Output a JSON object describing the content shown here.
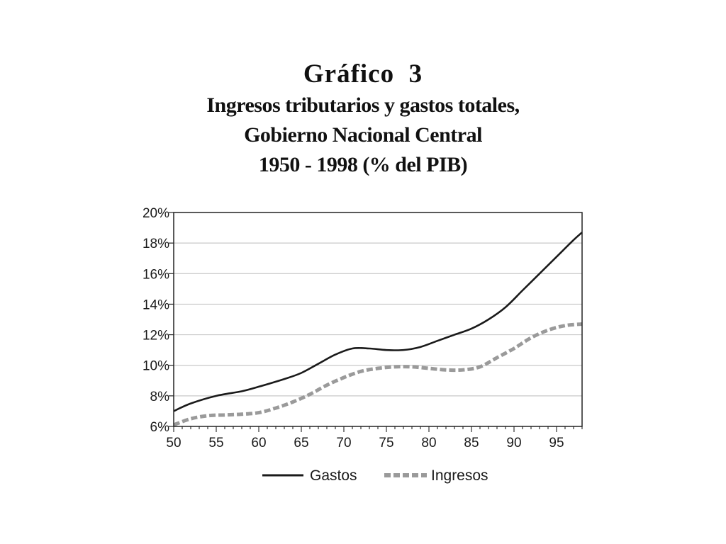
{
  "header": {
    "title": "Gráfico  3",
    "subtitle_lines": [
      "Ingresos tributarios y gastos totales,",
      "Gobierno Nacional Central",
      "1950 - 1998 (% del PIB)"
    ]
  },
  "colors": {
    "gastos": "#1a1a1a",
    "ingresos": "#9a9a9a",
    "grid": "#c8c8c8",
    "frame": "#222222"
  },
  "chart_data": {
    "type": "line",
    "title": "",
    "xlabel": "",
    "ylabel": "",
    "xlim": [
      50,
      98
    ],
    "ylim": [
      6,
      20
    ],
    "x_ticks": [
      50,
      55,
      60,
      65,
      70,
      75,
      80,
      85,
      90,
      95
    ],
    "x_tick_labels": [
      "50",
      "55",
      "60",
      "65",
      "70",
      "75",
      "80",
      "85",
      "90",
      "95"
    ],
    "y_ticks": [
      6,
      8,
      10,
      12,
      14,
      16,
      18,
      20
    ],
    "y_tick_labels": [
      "6%",
      "8%",
      "10%",
      "12%",
      "14%",
      "16%",
      "18%",
      "20%"
    ],
    "grid": "horizontal",
    "legend_position": "bottom",
    "series": [
      {
        "name": "Gastos",
        "style": "solid",
        "points": [
          [
            50,
            7.0
          ],
          [
            52,
            7.5
          ],
          [
            55,
            8.0
          ],
          [
            58,
            8.3
          ],
          [
            60,
            8.6
          ],
          [
            63,
            9.1
          ],
          [
            65,
            9.5
          ],
          [
            67,
            10.1
          ],
          [
            69,
            10.7
          ],
          [
            71,
            11.1
          ],
          [
            73,
            11.1
          ],
          [
            75,
            11.0
          ],
          [
            77,
            11.0
          ],
          [
            79,
            11.2
          ],
          [
            81,
            11.6
          ],
          [
            83,
            12.0
          ],
          [
            85,
            12.4
          ],
          [
            87,
            13.0
          ],
          [
            89,
            13.8
          ],
          [
            91,
            14.9
          ],
          [
            93,
            16.0
          ],
          [
            95,
            17.1
          ],
          [
            97,
            18.2
          ],
          [
            98,
            18.7
          ]
        ]
      },
      {
        "name": "Ingresos",
        "style": "dashed",
        "points": [
          [
            50,
            6.1
          ],
          [
            52,
            6.5
          ],
          [
            54,
            6.7
          ],
          [
            56,
            6.75
          ],
          [
            58,
            6.8
          ],
          [
            60,
            6.9
          ],
          [
            62,
            7.2
          ],
          [
            64,
            7.6
          ],
          [
            66,
            8.1
          ],
          [
            68,
            8.7
          ],
          [
            70,
            9.2
          ],
          [
            72,
            9.6
          ],
          [
            74,
            9.8
          ],
          [
            76,
            9.9
          ],
          [
            78,
            9.9
          ],
          [
            80,
            9.8
          ],
          [
            82,
            9.7
          ],
          [
            84,
            9.7
          ],
          [
            86,
            9.9
          ],
          [
            88,
            10.5
          ],
          [
            90,
            11.1
          ],
          [
            92,
            11.8
          ],
          [
            94,
            12.3
          ],
          [
            96,
            12.6
          ],
          [
            98,
            12.7
          ]
        ]
      }
    ]
  }
}
